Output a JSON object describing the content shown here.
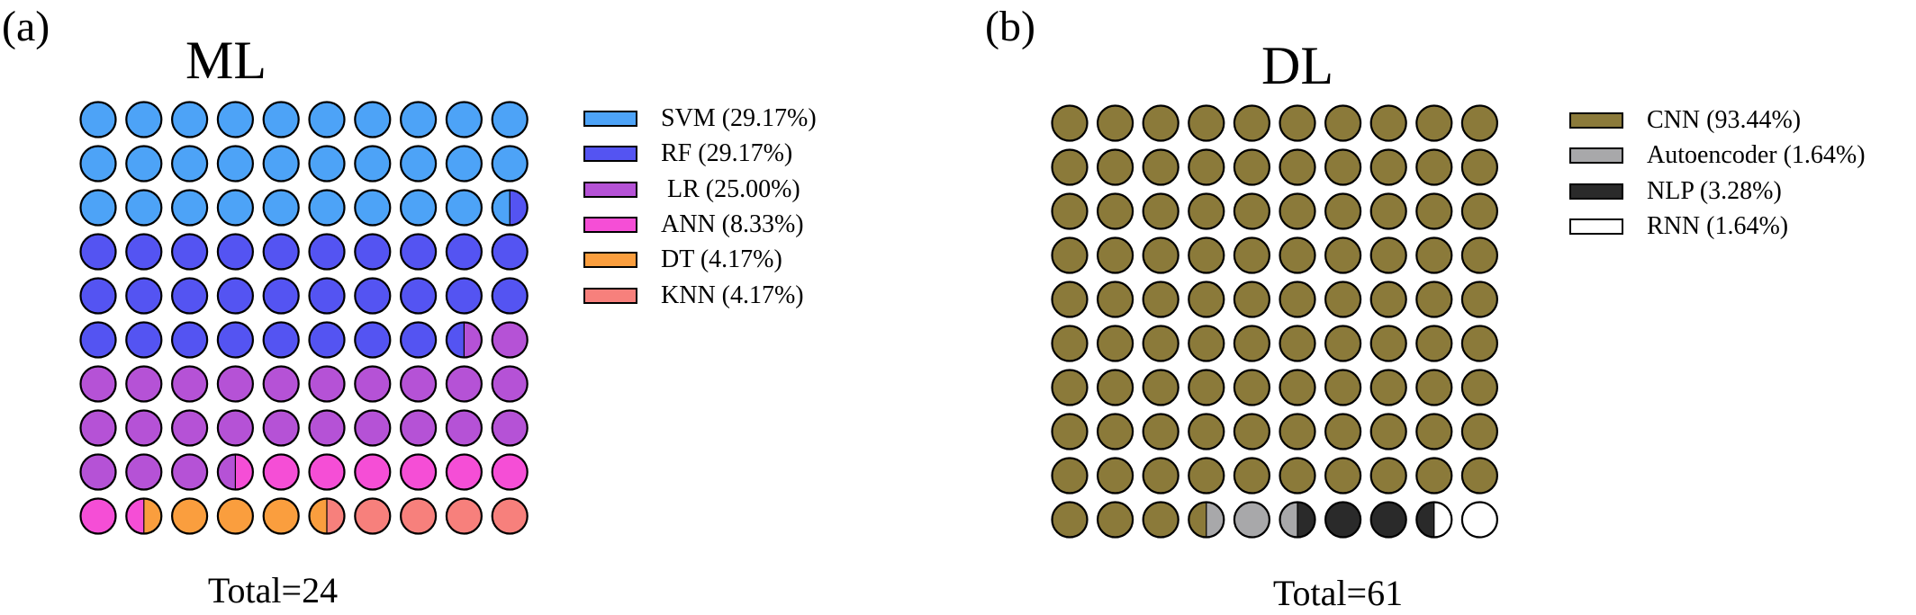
{
  "chart_data": [
    {
      "type": "waffle",
      "panel_label": "(a)",
      "title": "ML",
      "total_label": "Total=24",
      "total": 24,
      "grid": [
        10,
        10
      ],
      "legend_position": "right",
      "categories": [
        {
          "name": "SVM",
          "label": "SVM (29.17%)",
          "percent": 29.17,
          "color": "#4da3f7"
        },
        {
          "name": "RF",
          "label": "RF (29.17%)",
          "percent": 29.17,
          "color": "#5454f2"
        },
        {
          "name": "LR",
          "label": " LR (25.00%)",
          "percent": 25.0,
          "color": "#b552d6"
        },
        {
          "name": "ANN",
          "label": "ANN (8.33%)",
          "percent": 8.33,
          "color": "#f54ed6"
        },
        {
          "name": "DT",
          "label": "DT (4.17%)",
          "percent": 4.17,
          "color": "#fa9e3e"
        },
        {
          "name": "KNN",
          "label": "KNN (4.17%)",
          "percent": 4.17,
          "color": "#f7807c"
        }
      ]
    },
    {
      "type": "waffle",
      "panel_label": "(b)",
      "title": "DL",
      "total_label": "Total=61",
      "total": 61,
      "grid": [
        10,
        10
      ],
      "legend_position": "right",
      "categories": [
        {
          "name": "CNN",
          "label": "CNN (93.44%)",
          "percent": 93.44,
          "color": "#8b7a3a"
        },
        {
          "name": "Autoencoder",
          "label": "Autoencoder (1.64%)",
          "percent": 1.64,
          "color": "#a8a8aa"
        },
        {
          "name": "NLP",
          "label": "NLP (3.28%)",
          "percent": 3.28,
          "color": "#2a2a2a"
        },
        {
          "name": "RNN",
          "label": "RNN (1.64%)",
          "percent": 1.64,
          "color": "#ffffff"
        }
      ]
    }
  ]
}
